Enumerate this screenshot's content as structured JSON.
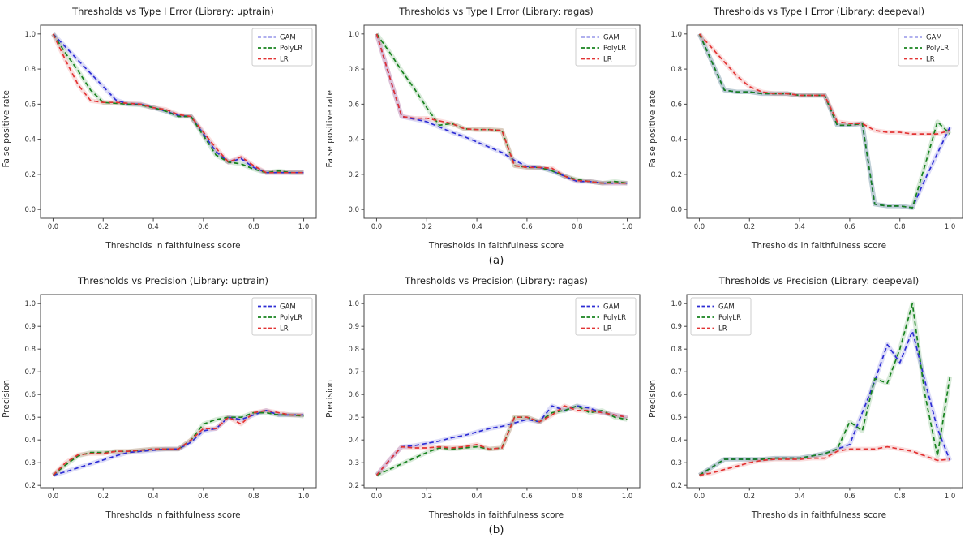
{
  "figure": {
    "captions": {
      "a": "(a)",
      "b": "(b)"
    },
    "colors": {
      "GAM": "#2d2dd4",
      "PolyLR": "#17821e",
      "LR": "#e23333",
      "spine": "#444444",
      "tick_text": "#333333"
    },
    "legend_labels": [
      "GAM",
      "PolyLR",
      "LR"
    ],
    "x_values": [
      0,
      0.05,
      0.1,
      0.15,
      0.2,
      0.25,
      0.3,
      0.35,
      0.4,
      0.45,
      0.5,
      0.55,
      0.6,
      0.65,
      0.7,
      0.75,
      0.8,
      0.85,
      0.9,
      0.95,
      1.0
    ]
  },
  "chart_data": [
    {
      "type": "line",
      "title": "Thresholds vs Type I Error (Library: uptrain)",
      "xlabel": "Thresholds in faithfulness score",
      "ylabel": "False positive rate",
      "xlim": [
        -0.05,
        1.05
      ],
      "ylim": [
        -0.05,
        1.05
      ],
      "xticks": [
        0.0,
        0.2,
        0.4,
        0.6,
        0.8,
        1.0
      ],
      "yticks": [
        0.0,
        0.2,
        0.4,
        0.6,
        0.8,
        1.0
      ],
      "legend_pos": "top-right",
      "grid": false,
      "series": [
        {
          "name": "GAM",
          "color": "#2d2dd4",
          "values": [
            1.0,
            0.925,
            0.85,
            0.775,
            0.7,
            0.625,
            0.6,
            0.6,
            0.58,
            0.56,
            0.535,
            0.53,
            0.43,
            0.33,
            0.27,
            0.29,
            0.24,
            0.21,
            0.21,
            0.21,
            0.21
          ]
        },
        {
          "name": "PolyLR",
          "color": "#17821e",
          "values": [
            1.0,
            0.89,
            0.79,
            0.68,
            0.61,
            0.605,
            0.6,
            0.595,
            0.58,
            0.56,
            0.53,
            0.53,
            0.42,
            0.31,
            0.27,
            0.26,
            0.23,
            0.21,
            0.22,
            0.21,
            0.21
          ]
        },
        {
          "name": "LR",
          "color": "#e23333",
          "values": [
            1.0,
            0.85,
            0.71,
            0.62,
            0.61,
            0.61,
            0.605,
            0.6,
            0.58,
            0.57,
            0.54,
            0.53,
            0.44,
            0.35,
            0.27,
            0.3,
            0.25,
            0.21,
            0.21,
            0.21,
            0.21
          ]
        }
      ]
    },
    {
      "type": "line",
      "title": "Thresholds vs Type I Error (Library: ragas)",
      "xlabel": "Thresholds in faithfulness score",
      "ylabel": "False positive rate",
      "xlim": [
        -0.05,
        1.05
      ],
      "ylim": [
        -0.05,
        1.05
      ],
      "xticks": [
        0.0,
        0.2,
        0.4,
        0.6,
        0.8,
        1.0
      ],
      "yticks": [
        0.0,
        0.2,
        0.4,
        0.6,
        0.8,
        1.0
      ],
      "legend_pos": "top-right",
      "grid": false,
      "series": [
        {
          "name": "GAM",
          "color": "#2d2dd4",
          "values": [
            1.0,
            0.765,
            0.53,
            0.515,
            0.5,
            0.47,
            0.44,
            0.415,
            0.385,
            0.355,
            0.325,
            0.28,
            0.245,
            0.24,
            0.22,
            0.19,
            0.16,
            0.16,
            0.15,
            0.15,
            0.15
          ]
        },
        {
          "name": "PolyLR",
          "color": "#17821e",
          "values": [
            1.0,
            0.9,
            0.79,
            0.69,
            0.58,
            0.48,
            0.49,
            0.46,
            0.455,
            0.455,
            0.45,
            0.25,
            0.24,
            0.24,
            0.22,
            0.19,
            0.17,
            0.16,
            0.15,
            0.16,
            0.15
          ]
        },
        {
          "name": "LR",
          "color": "#e23333",
          "values": [
            1.0,
            0.765,
            0.53,
            0.52,
            0.52,
            0.505,
            0.49,
            0.46,
            0.455,
            0.455,
            0.45,
            0.25,
            0.24,
            0.24,
            0.235,
            0.19,
            0.165,
            0.16,
            0.15,
            0.15,
            0.15
          ]
        }
      ]
    },
    {
      "type": "line",
      "title": "Thresholds vs Type I Error (Library: deepeval)",
      "xlabel": "Thresholds in faithfulness score",
      "ylabel": "False positive rate",
      "xlim": [
        -0.05,
        1.05
      ],
      "ylim": [
        -0.05,
        1.05
      ],
      "xticks": [
        0.0,
        0.2,
        0.4,
        0.6,
        0.8,
        1.0
      ],
      "yticks": [
        0.0,
        0.2,
        0.4,
        0.6,
        0.8,
        1.0
      ],
      "legend_pos": "top-right",
      "grid": false,
      "series": [
        {
          "name": "GAM",
          "color": "#2d2dd4",
          "values": [
            1.0,
            0.84,
            0.68,
            0.67,
            0.67,
            0.66,
            0.66,
            0.66,
            0.65,
            0.65,
            0.65,
            0.48,
            0.48,
            0.49,
            0.03,
            0.02,
            0.02,
            0.01,
            0.17,
            0.32,
            0.47
          ]
        },
        {
          "name": "PolyLR",
          "color": "#17821e",
          "values": [
            1.0,
            0.84,
            0.68,
            0.67,
            0.67,
            0.66,
            0.66,
            0.66,
            0.65,
            0.65,
            0.65,
            0.48,
            0.48,
            0.49,
            0.03,
            0.02,
            0.02,
            0.01,
            0.25,
            0.5,
            0.43
          ]
        },
        {
          "name": "LR",
          "color": "#e23333",
          "values": [
            1.0,
            0.92,
            0.84,
            0.76,
            0.7,
            0.67,
            0.66,
            0.66,
            0.65,
            0.65,
            0.65,
            0.5,
            0.49,
            0.49,
            0.45,
            0.44,
            0.44,
            0.43,
            0.43,
            0.43,
            0.45
          ]
        }
      ]
    },
    {
      "type": "line",
      "title": "Thresholds vs Precision (Library: uptrain)",
      "xlabel": "Thresholds in faithfulness score",
      "ylabel": "Precision",
      "xlim": [
        -0.05,
        1.05
      ],
      "ylim": [
        0.19,
        1.04
      ],
      "xticks": [
        0.0,
        0.2,
        0.4,
        0.6,
        0.8,
        1.0
      ],
      "yticks": [
        0.2,
        0.3,
        0.4,
        0.5,
        0.6,
        0.7,
        0.8,
        0.9,
        1.0
      ],
      "legend_pos": "top-right",
      "grid": false,
      "series": [
        {
          "name": "GAM",
          "color": "#2d2dd4",
          "values": [
            0.245,
            0.26,
            0.278,
            0.295,
            0.312,
            0.33,
            0.345,
            0.35,
            0.355,
            0.36,
            0.36,
            0.39,
            0.44,
            0.45,
            0.5,
            0.49,
            0.51,
            0.53,
            0.51,
            0.51,
            0.51
          ]
        },
        {
          "name": "PolyLR",
          "color": "#17821e",
          "values": [
            0.245,
            0.29,
            0.33,
            0.345,
            0.345,
            0.35,
            0.35,
            0.355,
            0.36,
            0.36,
            0.36,
            0.4,
            0.47,
            0.49,
            0.5,
            0.5,
            0.52,
            0.52,
            0.51,
            0.51,
            0.505
          ]
        },
        {
          "name": "LR",
          "color": "#e23333",
          "values": [
            0.245,
            0.3,
            0.335,
            0.34,
            0.34,
            0.35,
            0.35,
            0.355,
            0.36,
            0.36,
            0.36,
            0.4,
            0.45,
            0.45,
            0.5,
            0.47,
            0.52,
            0.53,
            0.52,
            0.51,
            0.51
          ]
        }
      ]
    },
    {
      "type": "line",
      "title": "Thresholds vs Precision (Library: ragas)",
      "xlabel": "Thresholds in faithfulness score",
      "ylabel": "Precision",
      "xlim": [
        -0.05,
        1.05
      ],
      "ylim": [
        0.19,
        1.04
      ],
      "xticks": [
        0.0,
        0.2,
        0.4,
        0.6,
        0.8,
        1.0
      ],
      "yticks": [
        0.2,
        0.3,
        0.4,
        0.5,
        0.6,
        0.7,
        0.8,
        0.9,
        1.0
      ],
      "legend_pos": "top-right",
      "grid": false,
      "series": [
        {
          "name": "GAM",
          "color": "#2d2dd4",
          "values": [
            0.245,
            0.31,
            0.37,
            0.375,
            0.385,
            0.395,
            0.41,
            0.42,
            0.435,
            0.45,
            0.46,
            0.475,
            0.49,
            0.48,
            0.55,
            0.53,
            0.55,
            0.54,
            0.52,
            0.51,
            0.5
          ]
        },
        {
          "name": "PolyLR",
          "color": "#17821e",
          "values": [
            0.245,
            0.27,
            0.295,
            0.32,
            0.345,
            0.365,
            0.36,
            0.365,
            0.37,
            0.36,
            0.365,
            0.5,
            0.5,
            0.48,
            0.52,
            0.53,
            0.55,
            0.52,
            0.53,
            0.5,
            0.49
          ]
        },
        {
          "name": "LR",
          "color": "#e23333",
          "values": [
            0.245,
            0.31,
            0.37,
            0.365,
            0.365,
            0.37,
            0.365,
            0.37,
            0.38,
            0.36,
            0.365,
            0.5,
            0.5,
            0.48,
            0.51,
            0.55,
            0.53,
            0.53,
            0.52,
            0.51,
            0.5
          ]
        }
      ]
    },
    {
      "type": "line",
      "title": "Thresholds vs Precision (Library: deepeval)",
      "xlabel": "Thresholds in faithfulness score",
      "ylabel": "Precision",
      "xlim": [
        -0.05,
        1.05
      ],
      "ylim": [
        0.19,
        1.04
      ],
      "xticks": [
        0.0,
        0.2,
        0.4,
        0.6,
        0.8,
        1.0
      ],
      "yticks": [
        0.2,
        0.3,
        0.4,
        0.5,
        0.6,
        0.7,
        0.8,
        0.9,
        1.0
      ],
      "legend_pos": "top-left",
      "grid": false,
      "series": [
        {
          "name": "GAM",
          "color": "#2d2dd4",
          "values": [
            0.245,
            0.28,
            0.315,
            0.315,
            0.315,
            0.315,
            0.32,
            0.32,
            0.32,
            0.33,
            0.34,
            0.36,
            0.38,
            0.52,
            0.66,
            0.82,
            0.74,
            0.88,
            0.66,
            0.45,
            0.31
          ]
        },
        {
          "name": "PolyLR",
          "color": "#17821e",
          "values": [
            0.245,
            0.28,
            0.315,
            0.315,
            0.315,
            0.315,
            0.32,
            0.32,
            0.32,
            0.33,
            0.34,
            0.36,
            0.48,
            0.44,
            0.67,
            0.65,
            0.8,
            1.0,
            0.6,
            0.33,
            0.68
          ]
        },
        {
          "name": "LR",
          "color": "#e23333",
          "values": [
            0.245,
            0.255,
            0.27,
            0.285,
            0.3,
            0.31,
            0.315,
            0.315,
            0.315,
            0.32,
            0.32,
            0.35,
            0.36,
            0.36,
            0.36,
            0.37,
            0.36,
            0.35,
            0.33,
            0.31,
            0.315
          ]
        }
      ]
    }
  ]
}
